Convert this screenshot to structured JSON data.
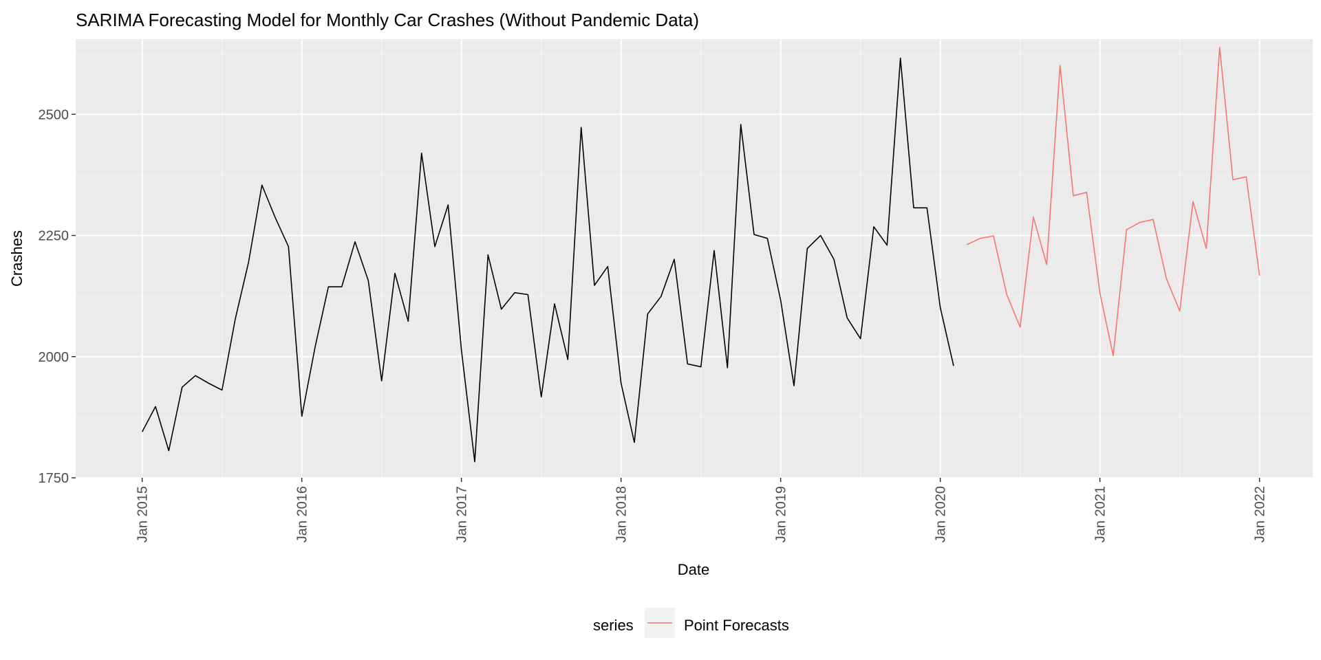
{
  "colors": {
    "panel_bg": "#EBEBEB",
    "grid_major": "#FFFFFF",
    "grid_minor": "#F5F5F5",
    "history_line": "#000000",
    "forecast_line": "#F8766D",
    "tick_text": "#4D4D4D",
    "tick_mark": "#333333"
  },
  "chart_data": {
    "type": "line",
    "title": "SARIMA Forecasting Model for Monthly Car Crashes (Without Pandemic Data)",
    "xlabel": "Date",
    "ylabel": "Crashes",
    "x_type": "date",
    "xlim": [
      "2014-08",
      "2022-05"
    ],
    "ylim": [
      1750,
      2655
    ],
    "x_ticks": [
      "2015-01",
      "2016-01",
      "2017-01",
      "2018-01",
      "2019-01",
      "2020-01",
      "2021-01",
      "2022-01"
    ],
    "x_tick_labels": [
      "Jan 2015",
      "Jan 2016",
      "Jan 2017",
      "Jan 2018",
      "Jan 2019",
      "Jan 2020",
      "Jan 2021",
      "Jan 2022"
    ],
    "y_ticks": [
      1750,
      2000,
      2250,
      2500
    ],
    "y_tick_labels": [
      "1750",
      "2000",
      "2250",
      "2500"
    ],
    "grid": true,
    "legend": {
      "position": "bottom",
      "title": "series",
      "entries": [
        "Point Forecasts"
      ]
    },
    "series": [
      {
        "role": "history",
        "color": "#000000",
        "x": [
          "2015-01",
          "2015-02",
          "2015-03",
          "2015-04",
          "2015-05",
          "2015-06",
          "2015-07",
          "2015-08",
          "2015-09",
          "2015-10",
          "2015-11",
          "2015-12",
          "2016-01",
          "2016-02",
          "2016-03",
          "2016-04",
          "2016-05",
          "2016-06",
          "2016-07",
          "2016-08",
          "2016-09",
          "2016-10",
          "2016-11",
          "2016-12",
          "2017-01",
          "2017-02",
          "2017-03",
          "2017-04",
          "2017-05",
          "2017-06",
          "2017-07",
          "2017-08",
          "2017-09",
          "2017-10",
          "2017-11",
          "2017-12",
          "2018-01",
          "2018-02",
          "2018-03",
          "2018-04",
          "2018-05",
          "2018-06",
          "2018-07",
          "2018-08",
          "2018-09",
          "2018-10",
          "2018-11",
          "2018-12",
          "2019-01",
          "2019-02",
          "2019-03",
          "2019-04",
          "2019-05",
          "2019-06",
          "2019-07",
          "2019-08",
          "2019-09",
          "2019-10",
          "2019-11",
          "2019-12",
          "2020-01",
          "2020-02"
        ],
        "values": [
          1845,
          1897,
          1806,
          1937,
          1961,
          1945,
          1931,
          2078,
          2195,
          2354,
          2287,
          2227,
          1877,
          2020,
          2144,
          2144,
          2237,
          2157,
          1950,
          2172,
          2073,
          2420,
          2227,
          2313,
          2013,
          1783,
          2210,
          2098,
          2132,
          2128,
          1917,
          2109,
          1994,
          2473,
          2147,
          2186,
          1945,
          1823,
          2088,
          2124,
          2201,
          1985,
          1979,
          2219,
          1977,
          2479,
          2252,
          2244,
          2116,
          1940,
          2223,
          2250,
          2201,
          2080,
          2037,
          2268,
          2230,
          2616,
          2307,
          2307,
          2101,
          1981
        ]
      },
      {
        "name": "Point Forecasts",
        "role": "forecast",
        "color": "#F8766D",
        "x": [
          "2020-03",
          "2020-04",
          "2020-05",
          "2020-06",
          "2020-07",
          "2020-08",
          "2020-09",
          "2020-10",
          "2020-11",
          "2020-12",
          "2021-01",
          "2021-02",
          "2021-03",
          "2021-04",
          "2021-05",
          "2021-06",
          "2021-07",
          "2021-08",
          "2021-09",
          "2021-10",
          "2021-11",
          "2021-12",
          "2022-01"
        ],
        "values": [
          2231,
          2244,
          2249,
          2128,
          2061,
          2288,
          2190,
          2601,
          2332,
          2339,
          2131,
          2002,
          2262,
          2277,
          2283,
          2161,
          2094,
          2320,
          2223,
          2638,
          2365,
          2371,
          2167
        ]
      }
    ]
  }
}
